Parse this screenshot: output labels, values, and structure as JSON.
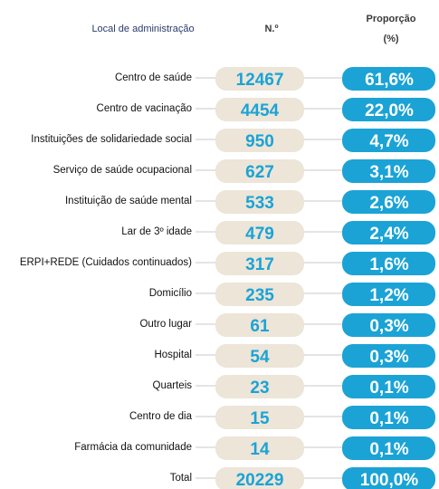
{
  "header": {
    "place": "Local de administração",
    "number": "N.º",
    "share_line1": "Proporção",
    "share_line2": "(%)"
  },
  "table": {
    "rows": [
      [
        "Centro de saúde",
        "12467",
        "61,6%"
      ],
      [
        "Centro de vacinação",
        "4454",
        "22,0%"
      ],
      [
        "Instituições de solidariedade social",
        "950",
        "4,7%"
      ],
      [
        "Serviço de saúde ocupacional",
        "627",
        "3,1%"
      ],
      [
        "Instituição de saúde mental",
        "533",
        "2,6%"
      ],
      [
        "Lar de 3º idade",
        "479",
        "2,4%"
      ],
      [
        "ERPI+REDE (Cuidados continuados)",
        "317",
        "1,6%"
      ],
      [
        "Domicílio",
        "235",
        "1,2%"
      ],
      [
        "Outro lugar",
        "61",
        "0,3%"
      ],
      [
        "Hospital",
        "54",
        "0,3%"
      ],
      [
        "Quarteis",
        "23",
        "0,1%"
      ],
      [
        "Centro de dia",
        "15",
        "0,1%"
      ],
      [
        "Farmácia da comunidade",
        "14",
        "0,1%"
      ],
      [
        "Total",
        "20229",
        "100,0%"
      ]
    ]
  }
}
